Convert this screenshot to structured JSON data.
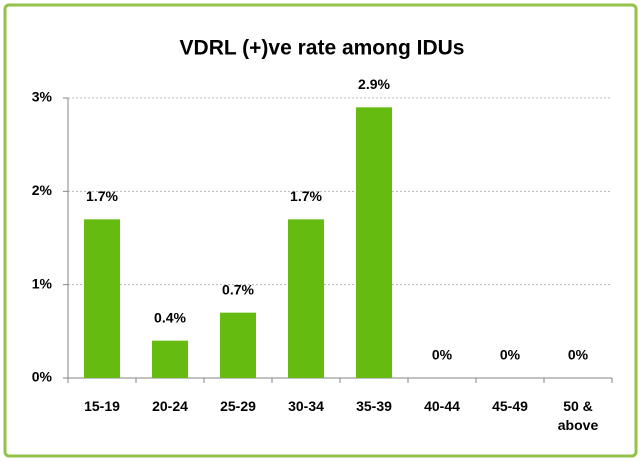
{
  "chart_data": {
    "type": "bar",
    "title": "VDRL (+)ve rate among IDUs",
    "categories": [
      "15-19",
      "20-24",
      "25-29",
      "30-34",
      "35-39",
      "40-44",
      "45-49",
      "50 & above"
    ],
    "values": [
      1.7,
      0.4,
      0.7,
      1.7,
      2.9,
      0,
      0,
      0
    ],
    "value_labels": [
      "1.7%",
      "0.4%",
      "0.7%",
      "1.7%",
      "2.9%",
      "0%",
      "0%",
      "0%"
    ],
    "color": "#66bb11",
    "ylim": [
      0,
      3
    ],
    "yticks": [
      {
        "value": 0,
        "label": "0%"
      },
      {
        "value": 1,
        "label": "1%"
      },
      {
        "value": 2,
        "label": "2%"
      },
      {
        "value": 3,
        "label": "3%"
      }
    ],
    "grid": true
  }
}
